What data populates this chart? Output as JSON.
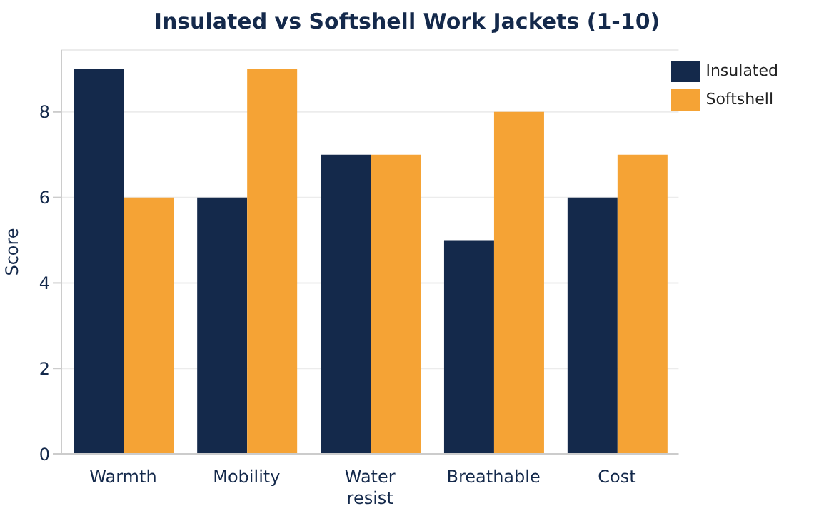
{
  "chart_data": {
    "type": "bar",
    "title": "Insulated vs Softshell Work Jackets (1-10)",
    "ylabel": "Score",
    "categories": [
      "Warmth",
      "Mobility",
      "Water resist",
      "Breathable",
      "Cost"
    ],
    "series": [
      {
        "name": "Insulated",
        "color": "#14294b",
        "values": [
          9,
          6,
          7,
          5,
          6
        ]
      },
      {
        "name": "Softshell",
        "color": "#f5a335",
        "values": [
          6,
          9,
          7,
          8,
          7
        ]
      }
    ],
    "ylim": [
      0,
      9.45
    ],
    "yticks": [
      0,
      2,
      4,
      6,
      8
    ],
    "grid": "y",
    "legend": "top right"
  }
}
